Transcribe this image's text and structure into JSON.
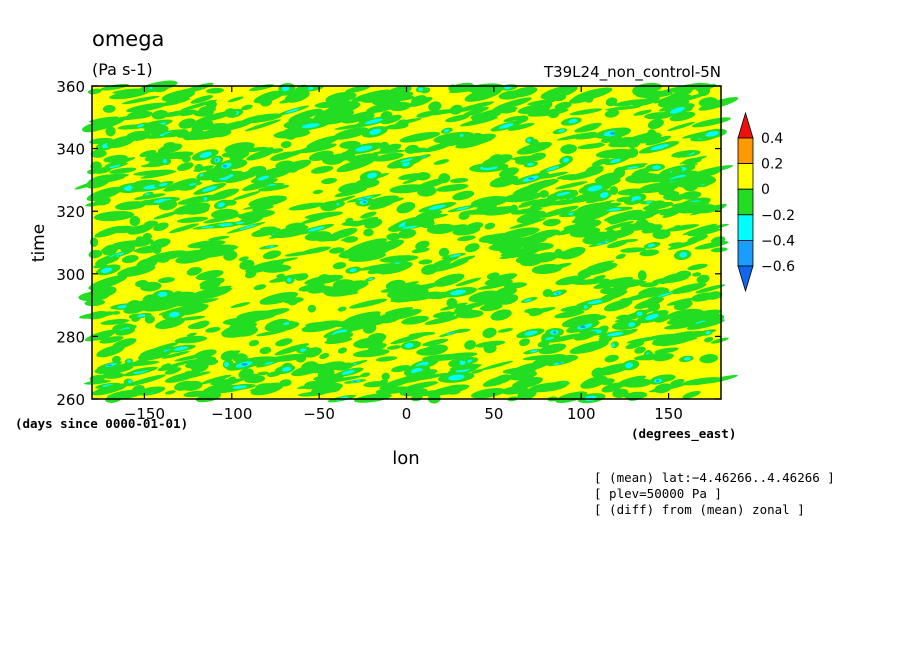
{
  "chart_data": {
    "type": "heatmap",
    "title": "omega",
    "units": "(Pa s-1)",
    "run_label": "T39L24_non_control-5N",
    "xlabel": "lon",
    "ylabel": "time",
    "x_units": "(degrees_east)",
    "y_units": "(days since 0000-01-01)",
    "xlim": [
      -180,
      180
    ],
    "ylim": [
      260,
      360
    ],
    "x_ticks": [
      -150,
      -100,
      -50,
      0,
      50,
      100,
      150
    ],
    "x_tick_labels": [
      "−150",
      "−100",
      "−50",
      "0",
      "50",
      "100",
      "150"
    ],
    "y_ticks": [
      260,
      280,
      300,
      320,
      340,
      360
    ],
    "y_tick_labels": [
      "260",
      "280",
      "300",
      "320",
      "340",
      "360"
    ],
    "colorbar": {
      "levels": [
        0.4,
        0.2,
        0,
        -0.2,
        -0.4,
        -0.6
      ],
      "level_labels": [
        "0.4",
        "0.2",
        "0",
        "−0.2",
        "−0.4",
        "−0.6"
      ],
      "bins": [
        {
          "range": "> 0.4",
          "color": "#ee1111"
        },
        {
          "range": "0.2 – 0.4",
          "color": "#ff9900"
        },
        {
          "range": "0 – 0.2",
          "color": "#ffff00"
        },
        {
          "range": "−0.2 – 0",
          "color": "#22dd22"
        },
        {
          "range": "−0.4 – −0.2",
          "color": "#00ffff"
        },
        {
          "range": "−0.6 – −0.4",
          "color": "#1a9dff"
        },
        {
          "range": "< −0.6",
          "color": "#1166ee"
        }
      ]
    },
    "dominant_field_color": "#ffff00",
    "notes": [
      "[ (mean) lat:−4.46266..4.46266 ]",
      "[ plev=50000 Pa ]",
      "[ (diff) from (mean) zonal ]"
    ]
  }
}
